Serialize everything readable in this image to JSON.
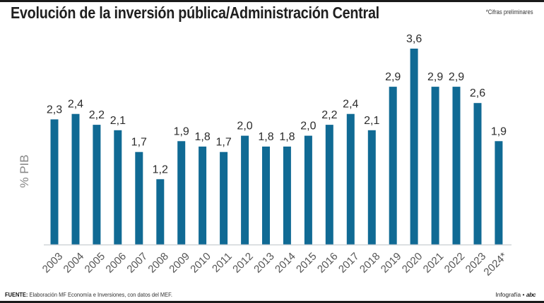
{
  "header": {
    "title": "Evolución de la inversión pública/Administración Central",
    "note": "*Cifras preliminares"
  },
  "footer": {
    "source_label": "FUENTE:",
    "source_text": " Elaboración MF Economía e Inversiones, con datos del MEF.",
    "credit_text": "Infografía •",
    "credit_brand": "abc"
  },
  "colors": {
    "bar": "#106a94",
    "baseline": "#d0d4d8"
  },
  "chart_data": {
    "type": "bar",
    "title": "Evolución de la inversión pública/Administración Central",
    "xlabel": "",
    "ylabel": "% PIB",
    "ylim": [
      0,
      3.6
    ],
    "grid": false,
    "legend": "none",
    "categories": [
      "2003",
      "2004",
      "2005",
      "2006",
      "2007",
      "2008",
      "2009",
      "2010",
      "2011",
      "2012",
      "2013",
      "2014",
      "2015",
      "2016",
      "2017",
      "2018",
      "2019",
      "2020",
      "2021",
      "2022",
      "2023",
      "2024*"
    ],
    "values": [
      2.3,
      2.4,
      2.2,
      2.1,
      1.7,
      1.2,
      1.9,
      1.8,
      1.7,
      2.0,
      1.8,
      1.8,
      2.0,
      2.2,
      2.4,
      2.1,
      2.9,
      3.6,
      2.9,
      2.9,
      2.6,
      1.9
    ],
    "value_labels": [
      "2,3",
      "2,4",
      "2,2",
      "2,1",
      "1,7",
      "1,2",
      "1,9",
      "1,8",
      "1,7",
      "2,0",
      "1,8",
      "1,8",
      "2,0",
      "2,2",
      "2,4",
      "2,1",
      "2,9",
      "3,6",
      "2,9",
      "2,9",
      "2,6",
      "1,9"
    ]
  }
}
